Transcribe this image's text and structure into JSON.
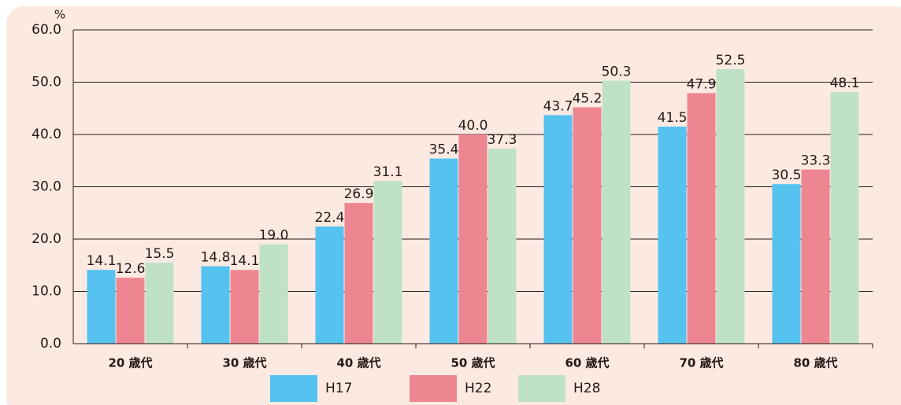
{
  "chart_data": {
    "type": "bar",
    "y_unit": "%",
    "categories": [
      "20 歳代",
      "30 歳代",
      "40 歳代",
      "50 歳代",
      "60 歳代",
      "70 歳代",
      "80 歳代"
    ],
    "series": [
      {
        "name": "H17",
        "color": "#56c2f0",
        "values": [
          14.1,
          14.8,
          22.4,
          35.4,
          43.7,
          41.5,
          30.5
        ]
      },
      {
        "name": "H22",
        "color": "#ee8691",
        "values": [
          12.6,
          14.1,
          26.9,
          40.0,
          45.2,
          47.9,
          33.3
        ],
        "value_labels": [
          "12.6",
          "14.1",
          "26.9",
          "40.0",
          "45.2",
          "47.9",
          "33.3"
        ]
      },
      {
        "name": "H28",
        "color": "#bfe1c6",
        "values": [
          15.5,
          19.0,
          31.1,
          37.3,
          50.3,
          52.5,
          48.1
        ],
        "value_labels": [
          "15.5",
          "19.0",
          "31.1",
          "37.3",
          "50.3",
          "52.5",
          "48.1"
        ]
      }
    ],
    "ylim": [
      0,
      60
    ],
    "yticks": [
      {
        "value": 0,
        "label": "0.0"
      },
      {
        "value": 10,
        "label": "10.0"
      },
      {
        "value": 20,
        "label": "20.0"
      },
      {
        "value": 30,
        "label": "30.0"
      },
      {
        "value": 40,
        "label": "40.0"
      },
      {
        "value": 50,
        "label": "50.0"
      },
      {
        "value": 60,
        "label": "60.0"
      }
    ],
    "grid": true,
    "legend": "bottom"
  }
}
